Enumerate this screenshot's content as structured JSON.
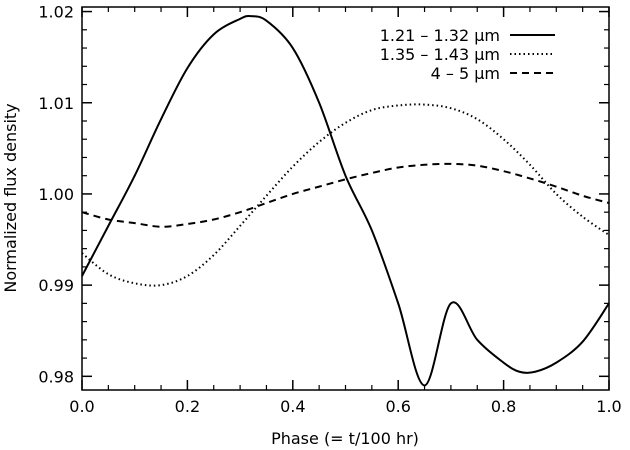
{
  "chart_data": {
    "type": "line",
    "title": "",
    "xlabel": "Phase (= t/100 hr)",
    "ylabel": "Normalized flux density",
    "xlim": [
      0.0,
      1.0
    ],
    "ylim": [
      0.9785,
      1.0205
    ],
    "x_ticks": [
      "0.0",
      "0.2",
      "0.4",
      "0.6",
      "0.8",
      "1.0"
    ],
    "y_ticks": [
      "0.98",
      "0.99",
      "1.00",
      "1.01",
      "1.02"
    ],
    "legend_position": "top-right",
    "series": [
      {
        "name": "1.21 – 1.32 µm",
        "style": "solid",
        "x": [
          0.0,
          0.05,
          0.1,
          0.15,
          0.2,
          0.25,
          0.3,
          0.32,
          0.35,
          0.4,
          0.45,
          0.5,
          0.55,
          0.6,
          0.65,
          0.7,
          0.75,
          0.8,
          0.83,
          0.86,
          0.9,
          0.95,
          1.0
        ],
        "y": [
          0.991,
          0.9965,
          1.002,
          1.0082,
          1.0138,
          1.0175,
          1.0192,
          1.0195,
          1.019,
          1.016,
          1.01,
          1.002,
          0.996,
          0.988,
          0.979,
          0.988,
          0.984,
          0.9815,
          0.9805,
          0.9805,
          0.9815,
          0.9838,
          0.988
        ]
      },
      {
        "name": "1.35 – 1.43 µm",
        "style": "dotted",
        "x": [
          0.0,
          0.05,
          0.1,
          0.15,
          0.2,
          0.25,
          0.3,
          0.35,
          0.4,
          0.45,
          0.5,
          0.55,
          0.6,
          0.65,
          0.7,
          0.75,
          0.8,
          0.85,
          0.9,
          0.95,
          1.0
        ],
        "y": [
          0.9935,
          0.9912,
          0.9902,
          0.99,
          0.991,
          0.9933,
          0.9965,
          0.9998,
          1.003,
          1.0057,
          1.0078,
          1.0092,
          1.0097,
          1.0098,
          1.0094,
          1.0082,
          1.006,
          1.0032,
          1.0,
          0.9975,
          0.9955
        ]
      },
      {
        "name": "4 – 5 µm",
        "style": "dashed",
        "x": [
          0.0,
          0.05,
          0.1,
          0.15,
          0.2,
          0.25,
          0.3,
          0.35,
          0.4,
          0.45,
          0.5,
          0.55,
          0.6,
          0.65,
          0.7,
          0.75,
          0.8,
          0.85,
          0.9,
          0.95,
          1.0
        ],
        "y": [
          0.998,
          0.9972,
          0.9968,
          0.9964,
          0.9967,
          0.9972,
          0.998,
          0.999,
          1.0,
          1.0008,
          1.0016,
          1.0023,
          1.0029,
          1.0032,
          1.0033,
          1.0031,
          1.0025,
          1.0017,
          1.0008,
          0.9998,
          0.999
        ]
      }
    ]
  }
}
